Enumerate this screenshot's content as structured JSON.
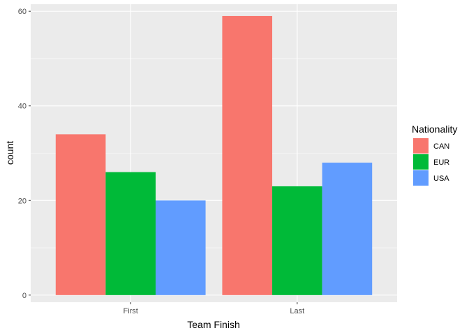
{
  "chart_data": {
    "type": "bar",
    "categories": [
      "First",
      "Last"
    ],
    "series": [
      {
        "name": "CAN",
        "color": "#F8766D",
        "values": [
          34,
          59
        ]
      },
      {
        "name": "EUR",
        "color": "#00BA38",
        "values": [
          26,
          23
        ]
      },
      {
        "name": "USA",
        "color": "#619CFF",
        "values": [
          20,
          28
        ]
      }
    ],
    "xlabel": "Team Finish",
    "ylabel": "count",
    "ylim": [
      -1.5,
      61.5
    ],
    "yticks": [
      0,
      20,
      40,
      60
    ],
    "legend_title": "Nationality",
    "legend_position": "right",
    "grid": true,
    "panel_background": "#EBEBEB"
  }
}
